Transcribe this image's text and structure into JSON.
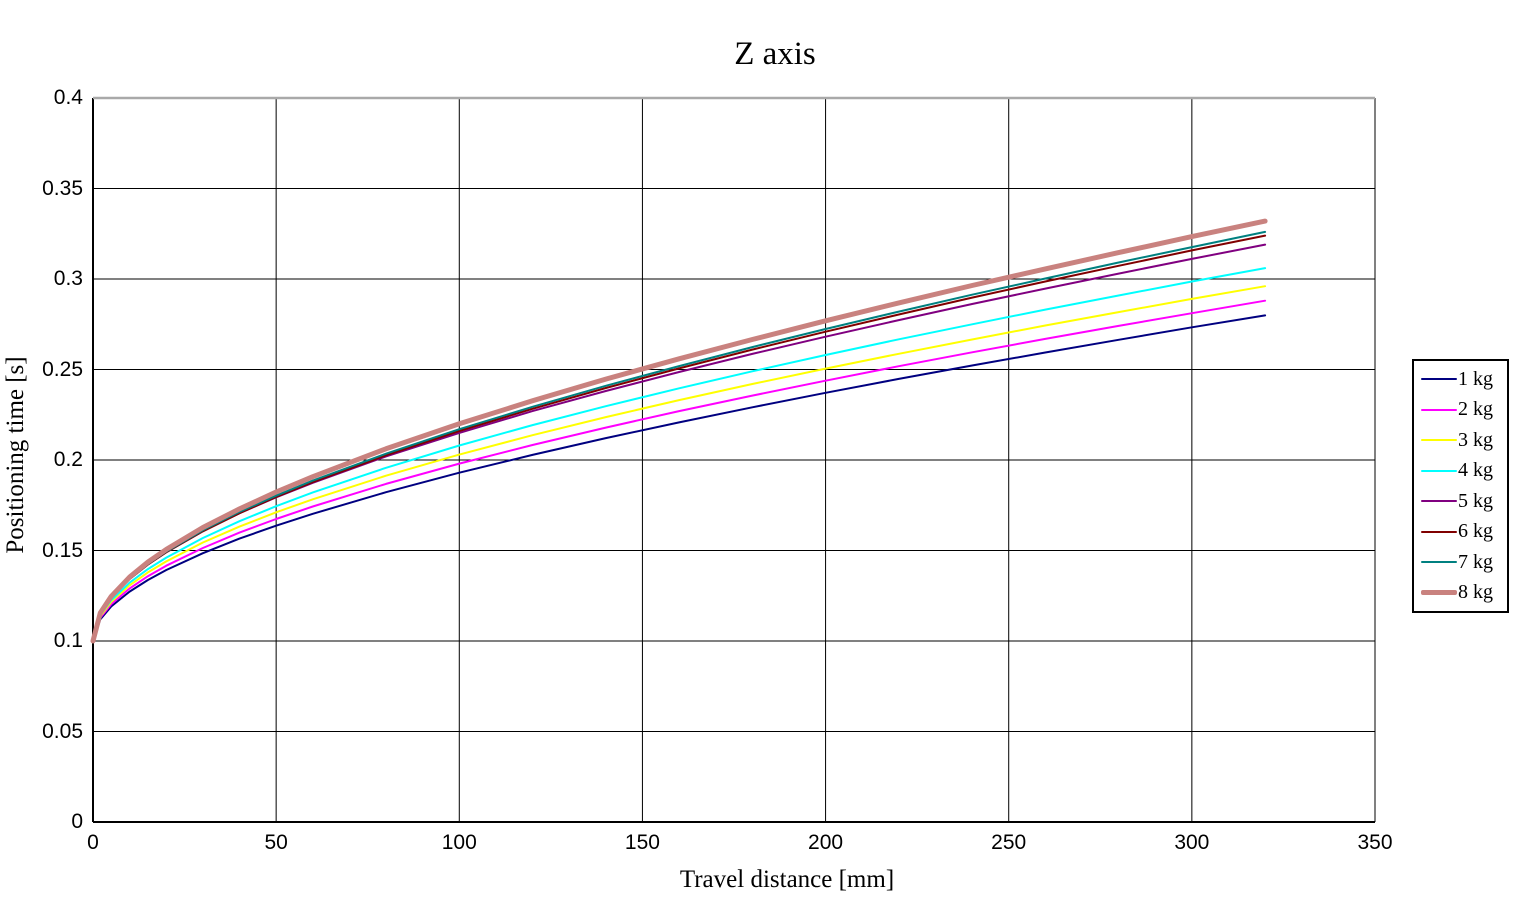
{
  "title": "Z axis",
  "chart_data": {
    "type": "line",
    "title": "Z axis",
    "xlabel": "Travel distance [mm]",
    "ylabel": "Positioning time [s]",
    "xlim": [
      0,
      350
    ],
    "ylim": [
      0,
      0.4
    ],
    "grid": true,
    "legend_position": "right-outside",
    "x_ticks": [
      0,
      50,
      100,
      150,
      200,
      250,
      300,
      350
    ],
    "x_tick_labels": [
      "0",
      "50",
      "100",
      "150",
      "200",
      "250",
      "300",
      "350"
    ],
    "y_ticks": [
      0,
      0.05,
      0.1,
      0.15,
      0.2,
      0.25,
      0.3,
      0.35,
      0.4
    ],
    "y_tick_labels": [
      "0",
      "0.05",
      "0.1",
      "0.15",
      "0.2",
      "0.25",
      "0.3",
      "0.35",
      "0.4"
    ],
    "top_border_color": "#A9A9A9",
    "grid_color": "#000000",
    "x": [
      0,
      2,
      5,
      10,
      15,
      20,
      30,
      40,
      50,
      60,
      80,
      100,
      120,
      140,
      160,
      180,
      200,
      220,
      240,
      260,
      280,
      300,
      320
    ],
    "series": [
      {
        "name": "1 kg",
        "color": "#000080",
        "line_width": 2,
        "values": [
          0.1,
          0.112,
          0.1191,
          0.1273,
          0.1337,
          0.1392,
          0.1485,
          0.1566,
          0.1637,
          0.1703,
          0.1822,
          0.193,
          0.2028,
          0.2121,
          0.2208,
          0.2291,
          0.2371,
          0.2448,
          0.2522,
          0.2594,
          0.2664,
          0.2733,
          0.2799
        ]
      },
      {
        "name": "2 kg",
        "color": "#FF00FF",
        "line_width": 2,
        "values": [
          0.1,
          0.1128,
          0.1204,
          0.129,
          0.1358,
          0.1416,
          0.1514,
          0.1599,
          0.1674,
          0.1743,
          0.1868,
          0.198,
          0.2083,
          0.2179,
          0.227,
          0.2356,
          0.2438,
          0.2518,
          0.2595,
          0.2669,
          0.2741,
          0.2811,
          0.288
        ]
      },
      {
        "name": "3 kg",
        "color": "#FFFF00",
        "line_width": 2,
        "values": [
          0.1,
          0.1136,
          0.1216,
          0.1308,
          0.1379,
          0.144,
          0.1544,
          0.1632,
          0.1711,
          0.1783,
          0.1913,
          0.203,
          0.2137,
          0.2237,
          0.2331,
          0.242,
          0.2505,
          0.2587,
          0.2666,
          0.2743,
          0.2817,
          0.289,
          0.296
        ]
      },
      {
        "name": "4 kg",
        "color": "#00FFFF",
        "line_width": 2,
        "values": [
          0.1,
          0.1142,
          0.1226,
          0.1322,
          0.1397,
          0.1461,
          0.1569,
          0.1662,
          0.1745,
          0.1821,
          0.1957,
          0.208,
          0.2193,
          0.2297,
          0.2396,
          0.249,
          0.258,
          0.2667,
          0.275,
          0.2831,
          0.2909,
          0.2986,
          0.306
        ]
      },
      {
        "name": "5 kg",
        "color": "#800080",
        "line_width": 2,
        "values": [
          0.1,
          0.1151,
          0.1241,
          0.1343,
          0.1423,
          0.1491,
          0.1607,
          0.1706,
          0.1794,
          0.1874,
          0.202,
          0.215,
          0.227,
          0.2381,
          0.2486,
          0.2586,
          0.2681,
          0.2773,
          0.2862,
          0.2947,
          0.303,
          0.3111,
          0.319
        ]
      },
      {
        "name": "6 kg",
        "color": "#800000",
        "line_width": 2,
        "values": [
          0.1,
          0.115,
          0.1239,
          0.1342,
          0.1422,
          0.149,
          0.1606,
          0.1706,
          0.1796,
          0.1878,
          0.2026,
          0.216,
          0.2283,
          0.2398,
          0.2506,
          0.261,
          0.2709,
          0.2804,
          0.2897,
          0.2986,
          0.3073,
          0.3158,
          0.324
        ]
      },
      {
        "name": "7 kg",
        "color": "#008080",
        "line_width": 2,
        "values": [
          0.1,
          0.1151,
          0.1241,
          0.1344,
          0.1425,
          0.1494,
          0.1612,
          0.1713,
          0.1803,
          0.1886,
          0.2035,
          0.217,
          0.2294,
          0.241,
          0.2519,
          0.2624,
          0.2724,
          0.282,
          0.2913,
          0.3003,
          0.3091,
          0.3176,
          0.326
        ]
      },
      {
        "name": "8 kg",
        "color": "#C9827F",
        "line_width": 5,
        "values": [
          0.1,
          0.1155,
          0.1247,
          0.1353,
          0.1436,
          0.1506,
          0.1627,
          0.173,
          0.1823,
          0.1908,
          0.2062,
          0.22,
          0.2327,
          0.2447,
          0.2559,
          0.2666,
          0.2769,
          0.2868,
          0.2964,
          0.3056,
          0.3146,
          0.3234,
          0.332
        ]
      }
    ]
  }
}
